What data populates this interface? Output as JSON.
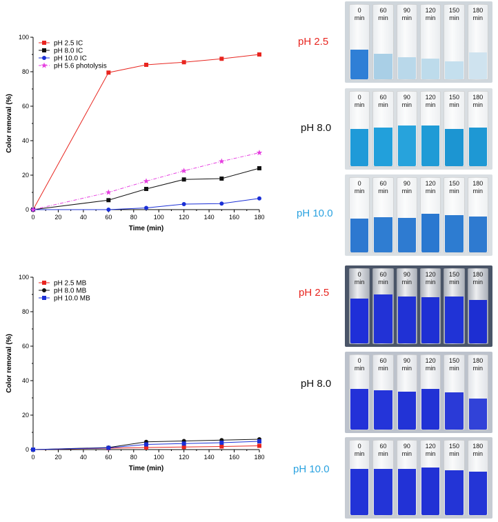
{
  "chart_data": [
    {
      "type": "line",
      "xlabel": "Time (min)",
      "ylabel": "Color removal (%)",
      "xlim": [
        0,
        180
      ],
      "ylim": [
        0,
        100
      ],
      "xticks": [
        0,
        20,
        40,
        60,
        80,
        100,
        120,
        140,
        160,
        180
      ],
      "yticks": [
        0,
        20,
        40,
        60,
        80,
        100
      ],
      "grid": false,
      "legend_position": "top-left",
      "series": [
        {
          "name": "pH 2.5 IC",
          "color": "#e8251f",
          "marker": "square",
          "line": "solid",
          "x": [
            0,
            60,
            90,
            120,
            150,
            180
          ],
          "y": [
            0,
            79.5,
            84,
            85.5,
            87.5,
            90
          ]
        },
        {
          "name": "pH  8.0 IC",
          "color": "#111111",
          "marker": "square",
          "line": "solid",
          "x": [
            0,
            60,
            90,
            120,
            150,
            180
          ],
          "y": [
            0,
            5.5,
            12,
            17.5,
            18,
            24
          ]
        },
        {
          "name": "pH 10.0 IC",
          "color": "#1a2fd6",
          "marker": "circle",
          "line": "solid",
          "x": [
            0,
            60,
            90,
            120,
            150,
            180
          ],
          "y": [
            0,
            0,
            1,
            3.2,
            3.5,
            6.5
          ]
        },
        {
          "name": "pH 5.6 photolysis",
          "color": "#e63fe0",
          "marker": "star",
          "line": "dashdot",
          "x": [
            0,
            60,
            90,
            120,
            150,
            180
          ],
          "y": [
            0,
            10,
            16.5,
            22.5,
            28,
            33
          ]
        }
      ]
    },
    {
      "type": "line",
      "xlabel": "Time (min)",
      "ylabel": "Color removal (%)",
      "xlim": [
        0,
        180
      ],
      "ylim": [
        0,
        100
      ],
      "xticks": [
        0,
        20,
        40,
        60,
        80,
        100,
        120,
        140,
        160,
        180
      ],
      "yticks": [
        0,
        20,
        40,
        60,
        80,
        100
      ],
      "grid": false,
      "legend_position": "top-left",
      "series": [
        {
          "name": "pH 2.5 MB",
          "color": "#e8251f",
          "marker": "square",
          "line": "solid",
          "x": [
            0,
            60,
            90,
            120,
            150,
            180
          ],
          "y": [
            0,
            0.8,
            1.2,
            1.5,
            1.8,
            2.2
          ]
        },
        {
          "name": "pH 8.0 MB",
          "color": "#111111",
          "marker": "circle",
          "line": "solid",
          "x": [
            0,
            60,
            90,
            120,
            150,
            180
          ],
          "y": [
            0,
            1.2,
            4.5,
            5.0,
            5.5,
            6.0
          ]
        },
        {
          "name": "pH 10.0 MB",
          "color": "#1a2fd6",
          "marker": "square",
          "line": "solid",
          "x": [
            0,
            60,
            90,
            120,
            150,
            180
          ],
          "y": [
            0,
            1.0,
            3.0,
            3.5,
            4.0,
            4.8
          ]
        }
      ]
    }
  ],
  "ph_labels": [
    {
      "text": "pH 2.5",
      "color": "#e8251f"
    },
    {
      "text": "pH 8.0",
      "color": "#111111"
    },
    {
      "text": "pH 10.0",
      "color": "#2aa2e0"
    },
    {
      "text": "pH 2.5",
      "color": "#e8251f"
    },
    {
      "text": "pH 8.0",
      "color": "#111111"
    },
    {
      "text": "pH 10.0",
      "color": "#2aa2e0"
    }
  ],
  "photo_time_labels": [
    "0",
    "60",
    "90",
    "120",
    "150",
    "180"
  ],
  "photo_unit": "min",
  "photos": [
    {
      "bg": "#cfd6dc",
      "liquid": [
        "#2f7fd6",
        "#a9cfe6",
        "#b9d8ea",
        "#bddbeb",
        "#c4dfee",
        "#cfe3ef"
      ],
      "level": [
        0.4,
        0.34,
        0.3,
        0.28,
        0.24,
        0.36
      ]
    },
    {
      "bg": "#d9dee2",
      "liquid": [
        "#1f9ad8",
        "#22a0db",
        "#27a3dc",
        "#1f9bd6",
        "#1c95d2",
        "#1e98d4"
      ],
      "level": [
        0.5,
        0.52,
        0.55,
        0.55,
        0.5,
        0.52
      ]
    },
    {
      "bg": "#dadfe3",
      "liquid": [
        "#2d78d0",
        "#2f7dd2",
        "#2e7bd1",
        "#2a78d0",
        "#2d7cd1",
        "#2e7ad0"
      ],
      "level": [
        0.45,
        0.47,
        0.46,
        0.52,
        0.5,
        0.48
      ]
    },
    {
      "bg": "#4a5568",
      "liquid": [
        "#1f2fd8",
        "#2232d6",
        "#2031d5",
        "#1e30d4",
        "#2033d6",
        "#1d2ed2"
      ],
      "level": [
        0.6,
        0.66,
        0.63,
        0.62,
        0.63,
        0.58
      ]
    },
    {
      "bg": "#bcc2cc",
      "liquid": [
        "#2331d8",
        "#2434d9",
        "#2233d6",
        "#2132d5",
        "#2a3ad7",
        "#3142d8"
      ],
      "level": [
        0.55,
        0.53,
        0.51,
        0.55,
        0.5,
        0.42
      ]
    },
    {
      "bg": "#c7ccd3",
      "liquid": [
        "#2233d7",
        "#2334d7",
        "#2232d6",
        "#2131d5",
        "#2334d6",
        "#2435d6"
      ],
      "level": [
        0.62,
        0.62,
        0.62,
        0.64,
        0.6,
        0.58
      ]
    }
  ]
}
